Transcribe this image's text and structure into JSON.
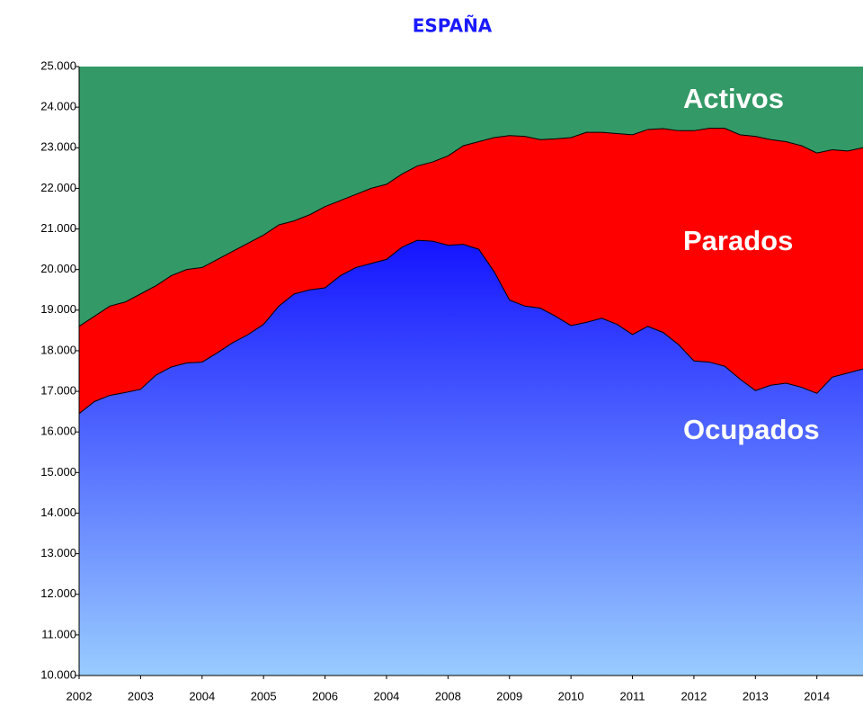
{
  "chart_data": {
    "type": "stacked_area",
    "title": "ESPAÑA",
    "categories": [
      "2002",
      null,
      null,
      null,
      "2003",
      null,
      null,
      null,
      "2004",
      null,
      null,
      null,
      "2005",
      null,
      null,
      null,
      "2006",
      null,
      null,
      null,
      "2004",
      null,
      null,
      null,
      "2008",
      null,
      null,
      null,
      "2009",
      null,
      null,
      null,
      "2010",
      null,
      null,
      null,
      "2011",
      null,
      null,
      null,
      "2012",
      null,
      null,
      null,
      "2013",
      null,
      null,
      null,
      "2014",
      null,
      null,
      null
    ],
    "series": [
      {
        "name": "Ocupados",
        "color": "#1414ff",
        "values": [
          16450,
          16750,
          16900,
          16970,
          17050,
          17400,
          17600,
          17700,
          17720,
          17950,
          18200,
          18400,
          18650,
          19100,
          19400,
          19500,
          19550,
          19850,
          20050,
          20150,
          20250,
          20550,
          20720,
          20700,
          20600,
          20620,
          20500,
          19950,
          19250,
          19100,
          19050,
          18850,
          18620,
          18700,
          18800,
          18650,
          18400,
          18600,
          18450,
          18150,
          17750,
          17720,
          17620,
          17300,
          17020,
          17150,
          17200,
          17100,
          16950,
          17350,
          17450,
          17550
        ]
      },
      {
        "name": "Parados",
        "color": "#ff0000",
        "values": [
          2150,
          2100,
          2200,
          2230,
          2350,
          2200,
          2250,
          2300,
          2330,
          2300,
          2250,
          2250,
          2200,
          2000,
          1800,
          1850,
          2000,
          1850,
          1800,
          1850,
          1850,
          1800,
          1830,
          1950,
          2200,
          2430,
          2650,
          3300,
          4050,
          4180,
          4150,
          4370,
          4630,
          4680,
          4580,
          4700,
          4920,
          4850,
          5020,
          5270,
          5670,
          5760,
          5860,
          6020,
          6260,
          6050,
          5950,
          5950,
          5920,
          5600,
          5470,
          5450
        ]
      },
      {
        "name": "Activos",
        "color": "#339966"
      }
    ],
    "ylim": [
      10000,
      25000
    ],
    "yticks": [
      {
        "value": 10000,
        "label": "10.000"
      },
      {
        "value": 11000,
        "label": "11.000"
      },
      {
        "value": 12000,
        "label": "12.000"
      },
      {
        "value": 13000,
        "label": "13.000"
      },
      {
        "value": 14000,
        "label": "14.000"
      },
      {
        "value": 15000,
        "label": "15.000"
      },
      {
        "value": 16000,
        "label": "16.000"
      },
      {
        "value": 17000,
        "label": "17.000"
      },
      {
        "value": 18000,
        "label": "18.000"
      },
      {
        "value": 19000,
        "label": "19.000"
      },
      {
        "value": 20000,
        "label": "20.000"
      },
      {
        "value": 21000,
        "label": "21.000"
      },
      {
        "value": 22000,
        "label": "22.000"
      },
      {
        "value": 23000,
        "label": "23.000"
      },
      {
        "value": 24000,
        "label": "24.000"
      },
      {
        "value": 25000,
        "label": "25.000"
      }
    ]
  }
}
